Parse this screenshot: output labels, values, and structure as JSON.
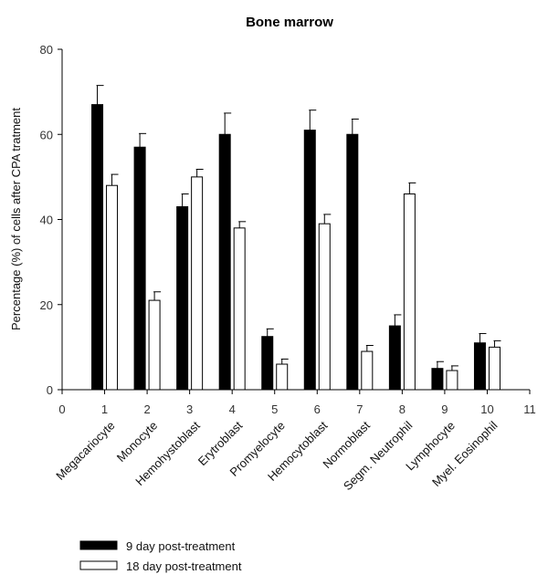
{
  "chart_data": {
    "type": "bar",
    "title": "Bone marrow",
    "ylabel": "Percentage (%) of cells after CPA tratment",
    "xlabel": "",
    "ylim": [
      0,
      80
    ],
    "yticks": [
      0,
      20,
      40,
      60,
      80
    ],
    "xlim": [
      0,
      11
    ],
    "xticks": [
      0,
      1,
      2,
      3,
      4,
      5,
      6,
      7,
      8,
      9,
      10,
      11
    ],
    "categories": [
      "Megacariocyte",
      "Monocyte",
      "Hemohystoblast",
      "Erytroblast",
      "Promyelocyte",
      "Hemocytoblast",
      "Normoblast",
      "Segm. Neutrophil",
      "Lymphocyte",
      "Myel. Eosinophil"
    ],
    "series": [
      {
        "name": "9 day post-treatment",
        "color": "#000000",
        "values": [
          67,
          57,
          43,
          60,
          12.5,
          61,
          60,
          15,
          5,
          11
        ],
        "errors": [
          4.5,
          3.2,
          3.0,
          5.0,
          1.8,
          4.7,
          3.6,
          2.6,
          1.6,
          2.2
        ]
      },
      {
        "name": "18 day post-treatment",
        "color": "#ffffff",
        "values": [
          48,
          21,
          50,
          38,
          6,
          39,
          9,
          46,
          4.5,
          10
        ],
        "errors": [
          2.6,
          2.0,
          1.8,
          1.5,
          1.2,
          2.2,
          1.4,
          2.6,
          1.1,
          1.5
        ]
      }
    ],
    "legend_position": "bottom-left",
    "grid": false
  }
}
